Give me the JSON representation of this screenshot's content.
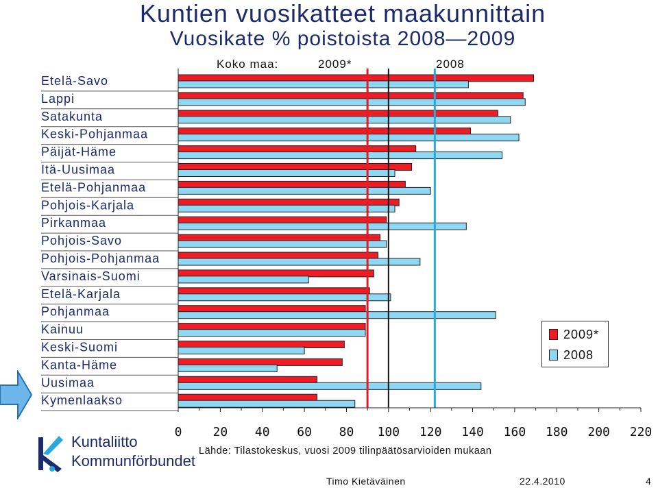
{
  "title": "Kuntien vuosikatteet maakunnittain",
  "subtitle": "Vuosikate % poistoista 2008—2009",
  "header": {
    "koko_maa_label": "Koko maa:",
    "year_2009_label": "2009*",
    "year_2008_label": "2008"
  },
  "chart_data": {
    "type": "bar",
    "orientation": "horizontal",
    "categories": [
      "Etelä-Savo",
      "Lappi",
      "Satakunta",
      "Keski-Pohjanmaa",
      "Päijät-Häme",
      "Itä-Uusimaa",
      "Etelä-Pohjanmaa",
      "Pohjois-Karjala",
      "Pirkanmaa",
      "Pohjois-Savo",
      "Pohjois-Pohjanmaa",
      "Varsinais-Suomi",
      "Etelä-Karjala",
      "Pohjanmaa",
      "Kainuu",
      "Keski-Suomi",
      "Kanta-Häme",
      "Uusimaa",
      "Kymenlaakso"
    ],
    "series": [
      {
        "name": "2009*",
        "color": "#ee1c25",
        "values": [
          169,
          164,
          152,
          139,
          113,
          111,
          108,
          105,
          99,
          96,
          95,
          93,
          91,
          89,
          89,
          79,
          78,
          66,
          66
        ]
      },
      {
        "name": "2008",
        "color": "#8fd8f4",
        "values": [
          138,
          165,
          158,
          162,
          154,
          103,
          120,
          103,
          137,
          99,
          115,
          62,
          101,
          151,
          89,
          60,
          47,
          144,
          84
        ]
      }
    ],
    "reference_lines": [
      {
        "label": "2009*",
        "value": 90,
        "color": "#e51b24"
      },
      {
        "label": "2008",
        "value": 122,
        "color": "#29a8df"
      }
    ],
    "xlim": [
      0,
      220
    ],
    "xticks": [
      0,
      20,
      40,
      60,
      80,
      100,
      120,
      140,
      160,
      180,
      200,
      220
    ],
    "legend_position": "right",
    "grid": false
  },
  "legend": {
    "items": [
      {
        "label": "2009*",
        "color": "#ee1c25"
      },
      {
        "label": "2008",
        "color": "#8fd8f4"
      }
    ]
  },
  "source": "Lähde: Tilastokeskus, vuosi 2009 tilinpäätösarvioiden mukaan",
  "logo": {
    "line1": "Kuntaliitto",
    "line2": "Kommunförbundet",
    "color": "#1b2a6b"
  },
  "footer": {
    "author": "Timo Kietäväinen",
    "date": "22.4.2010",
    "page": "4"
  }
}
